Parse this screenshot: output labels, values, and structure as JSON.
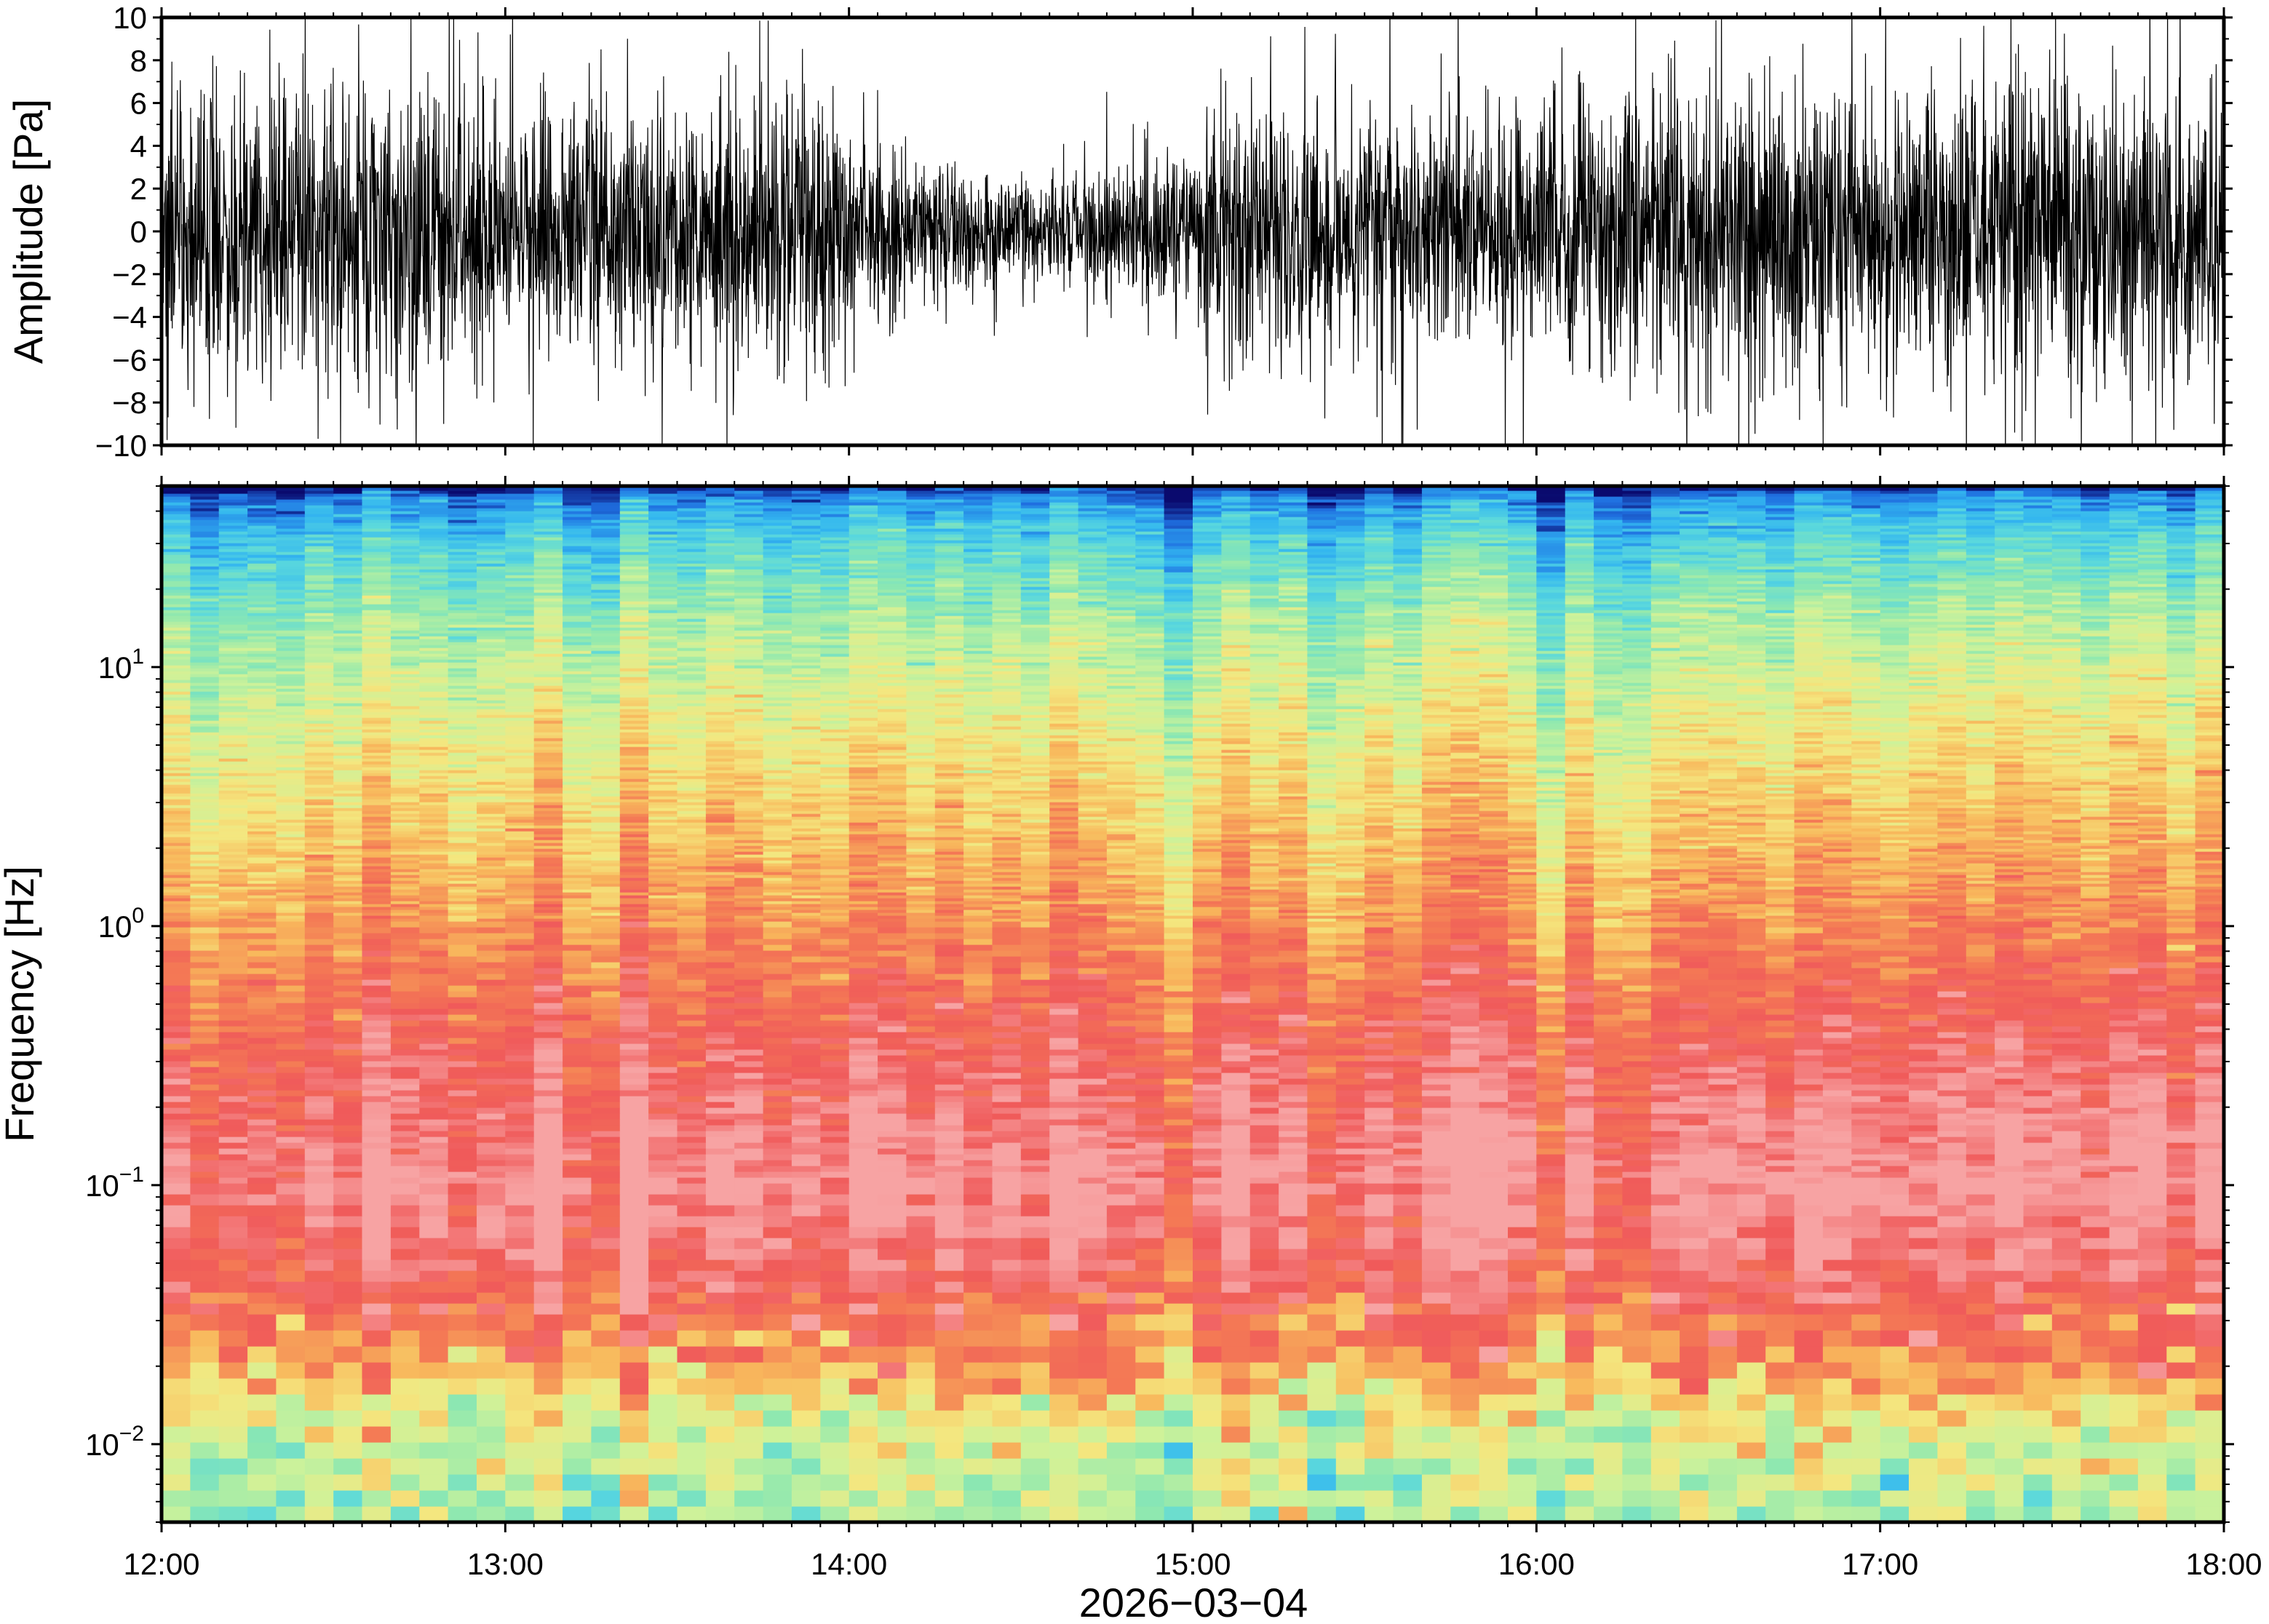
{
  "chart_data": [
    {
      "type": "line",
      "ylabel": "Amplitude [Pa]",
      "ylim": [
        -10,
        10
      ],
      "yticks": [
        "10",
        "8",
        "6",
        "4",
        "2",
        "0",
        "−2",
        "−4",
        "−6",
        "−8",
        "−10"
      ],
      "ytick_values": [
        10,
        8,
        6,
        4,
        2,
        0,
        -2,
        -4,
        -6,
        -8,
        -10
      ],
      "x_range": [
        "12:00",
        "18:00"
      ],
      "grid": false,
      "series": [
        {
          "color": "#000000",
          "envelope_abs_amplitude": {
            "times": [
              "12:00",
              "12:30",
              "13:00",
              "13:30",
              "13:58",
              "14:02",
              "14:30",
              "15:00",
              "15:03",
              "15:30",
              "16:00",
              "16:30",
              "17:00",
              "17:30",
              "18:00"
            ],
            "values": [
              4.0,
              4.0,
              3.6,
              3.4,
              3.8,
              2.3,
              1.6,
              2.1,
              3.5,
              3.3,
              3.6,
              4.1,
              3.8,
              4.3,
              4.0
            ]
          }
        }
      ]
    },
    {
      "type": "heatmap",
      "xlabel": "2026−03−04",
      "ylabel": "Frequency [Hz]",
      "yscale": "log",
      "ylim": [
        0.005,
        50
      ],
      "yticks": [
        {
          "value": 0.01,
          "base": "10",
          "exp": "−2"
        },
        {
          "value": 0.1,
          "base": "10",
          "exp": "−1"
        },
        {
          "value": 1,
          "base": "10",
          "exp": "0"
        },
        {
          "value": 10,
          "base": "10",
          "exp": "1"
        }
      ],
      "x_ticks": [
        "12:00",
        "13:00",
        "14:00",
        "15:00",
        "16:00",
        "17:00",
        "18:00"
      ],
      "colormap": [
        "#0a0a6e",
        "#1f6fe0",
        "#33b6f0",
        "#5ad8dd",
        "#8ee8b0",
        "#cdf29a",
        "#f4e77f",
        "#f8b85c",
        "#f47a55",
        "#f05a5a",
        "#f7a3a3"
      ],
      "frequency_profile": {
        "frequency_hz": [
          50,
          45,
          30,
          15,
          5,
          1.2,
          0.35,
          0.1,
          0.04,
          0.02,
          0.012,
          0.005
        ],
        "level_index": [
          0,
          1.5,
          3,
          4.5,
          6,
          7.5,
          9,
          10,
          9,
          7.5,
          5.5,
          4.5
        ]
      }
    }
  ]
}
